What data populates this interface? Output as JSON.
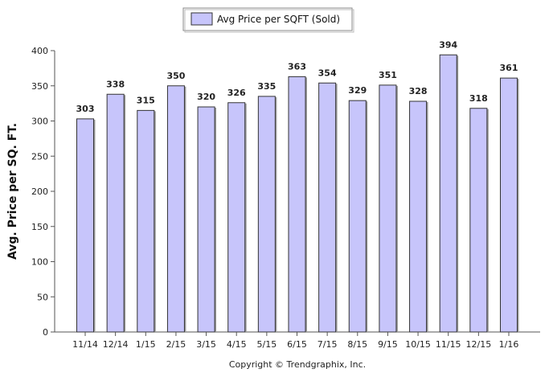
{
  "chart_data": {
    "type": "bar",
    "categories": [
      "11/14",
      "12/14",
      "1/15",
      "2/15",
      "3/15",
      "4/15",
      "5/15",
      "6/15",
      "7/15",
      "8/15",
      "9/15",
      "10/15",
      "11/15",
      "12/15",
      "1/16"
    ],
    "series": [
      {
        "name": "Avg Price per SQFT (Sold)",
        "values": [
          303,
          338,
          315,
          350,
          320,
          326,
          335,
          363,
          354,
          329,
          351,
          328,
          394,
          318,
          361
        ]
      }
    ],
    "title": "",
    "xlabel": "",
    "ylabel": "Avg. Price per SQ. FT.",
    "ylim": [
      0,
      400
    ],
    "yticks": [
      0,
      50,
      100,
      150,
      200,
      250,
      300,
      350,
      400
    ],
    "legend": "top-center",
    "grid": false,
    "colors": {
      "bar_fill": "#c7c5fb",
      "bar_stroke": "#333333",
      "axis": "#555555"
    }
  },
  "footer": {
    "copyright": "Copyright © Trendgraphix, Inc."
  }
}
